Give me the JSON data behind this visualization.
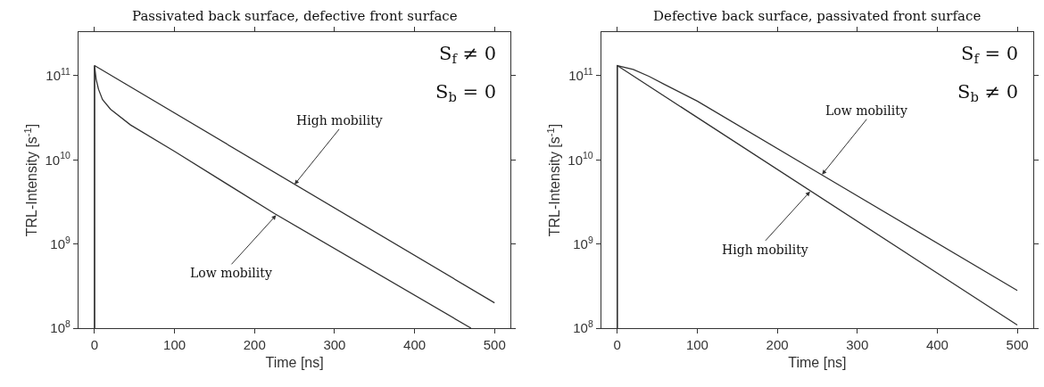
{
  "chart_data": [
    {
      "type": "line",
      "title": "Passivated back surface, defective front surface",
      "xlabel": "Time [ns]",
      "ylabel": "TRL-Intensity [s$^{-1}$]",
      "log": "y",
      "marker": "none",
      "line_style": "solid",
      "xlim": [
        -20,
        520
      ],
      "xticks": [
        0,
        100,
        200,
        300,
        400,
        500
      ],
      "ylim": [
        100000000.0,
        330000000000.0
      ],
      "yticks": [
        {
          "value": 100000000.0,
          "label": "10$^{8}$"
        },
        {
          "value": 1000000000.0,
          "label": "10$^{9}$"
        },
        {
          "value": 10000000000.0,
          "label": "10$^{10}$"
        },
        {
          "value": 100000000000.0,
          "label": "10$^{11}$"
        }
      ],
      "series": [
        {
          "color": "#333333",
          "x": [
            0,
            0,
            500
          ],
          "values": [
            100000000.0,
            132000000000.0,
            200000000.0
          ]
        },
        {
          "color": "#333333",
          "x": [
            0,
            0,
            2,
            5,
            10,
            20,
            45,
            100,
            225,
            470.6
          ],
          "values": [
            100000000.0,
            132000000000.0,
            91000000000.0,
            69000000000.0,
            52000000000.0,
            40000000000.0,
            26000000000.0,
            12600000000.0,
            2300000000.0,
            100000000.0
          ]
        }
      ],
      "annotations": [
        {
          "text": "High mobility",
          "x": 250,
          "y": 5100000000.0
        },
        {
          "text": "Low mobility",
          "x": 227,
          "y": 2200000000.0
        },
        "S$_{f}$ ≠ 0",
        "S$_{b}$ = 0"
      ]
    },
    {
      "type": "line",
      "title": "Defective back surface, passivated front surface",
      "xlabel": "Time [ns]",
      "ylabel": "TRL-Intensity [s$^{-1}$]",
      "log": "y",
      "marker": "none",
      "line_style": "solid",
      "xlim": [
        -20,
        520
      ],
      "xticks": [
        0,
        100,
        200,
        300,
        400,
        500
      ],
      "ylim": [
        100000000.0,
        330000000000.0
      ],
      "yticks": [
        {
          "value": 100000000.0,
          "label": "10$^{8}$"
        },
        {
          "value": 1000000000.0,
          "label": "10$^{9}$"
        },
        {
          "value": 10000000000.0,
          "label": "10$^{10}$"
        },
        {
          "value": 100000000000.0,
          "label": "10$^{11}$"
        }
      ],
      "series": [
        {
          "color": "#333333",
          "x": [
            0,
            0,
            20,
            40,
            60,
            100,
            255,
            500
          ],
          "values": [
            100000000.0,
            132000000000.0,
            119000000000.0,
            98000000000.0,
            78000000000.0,
            50000000000.0,
            6700000000.0,
            280000000.0
          ]
        },
        {
          "color": "#333333",
          "x": [
            0,
            0,
            500
          ],
          "values": [
            100000000.0,
            132000000000.0,
            109000000.0
          ]
        }
      ],
      "annotations": [
        {
          "text": "Low mobility",
          "x": 256,
          "y": 6700000000.0
        },
        {
          "text": "High mobility",
          "x": 241,
          "y": 4200000000.0
        },
        "S$_{f}$ = 0",
        "S$_{b}$ ≠ 0"
      ]
    }
  ]
}
